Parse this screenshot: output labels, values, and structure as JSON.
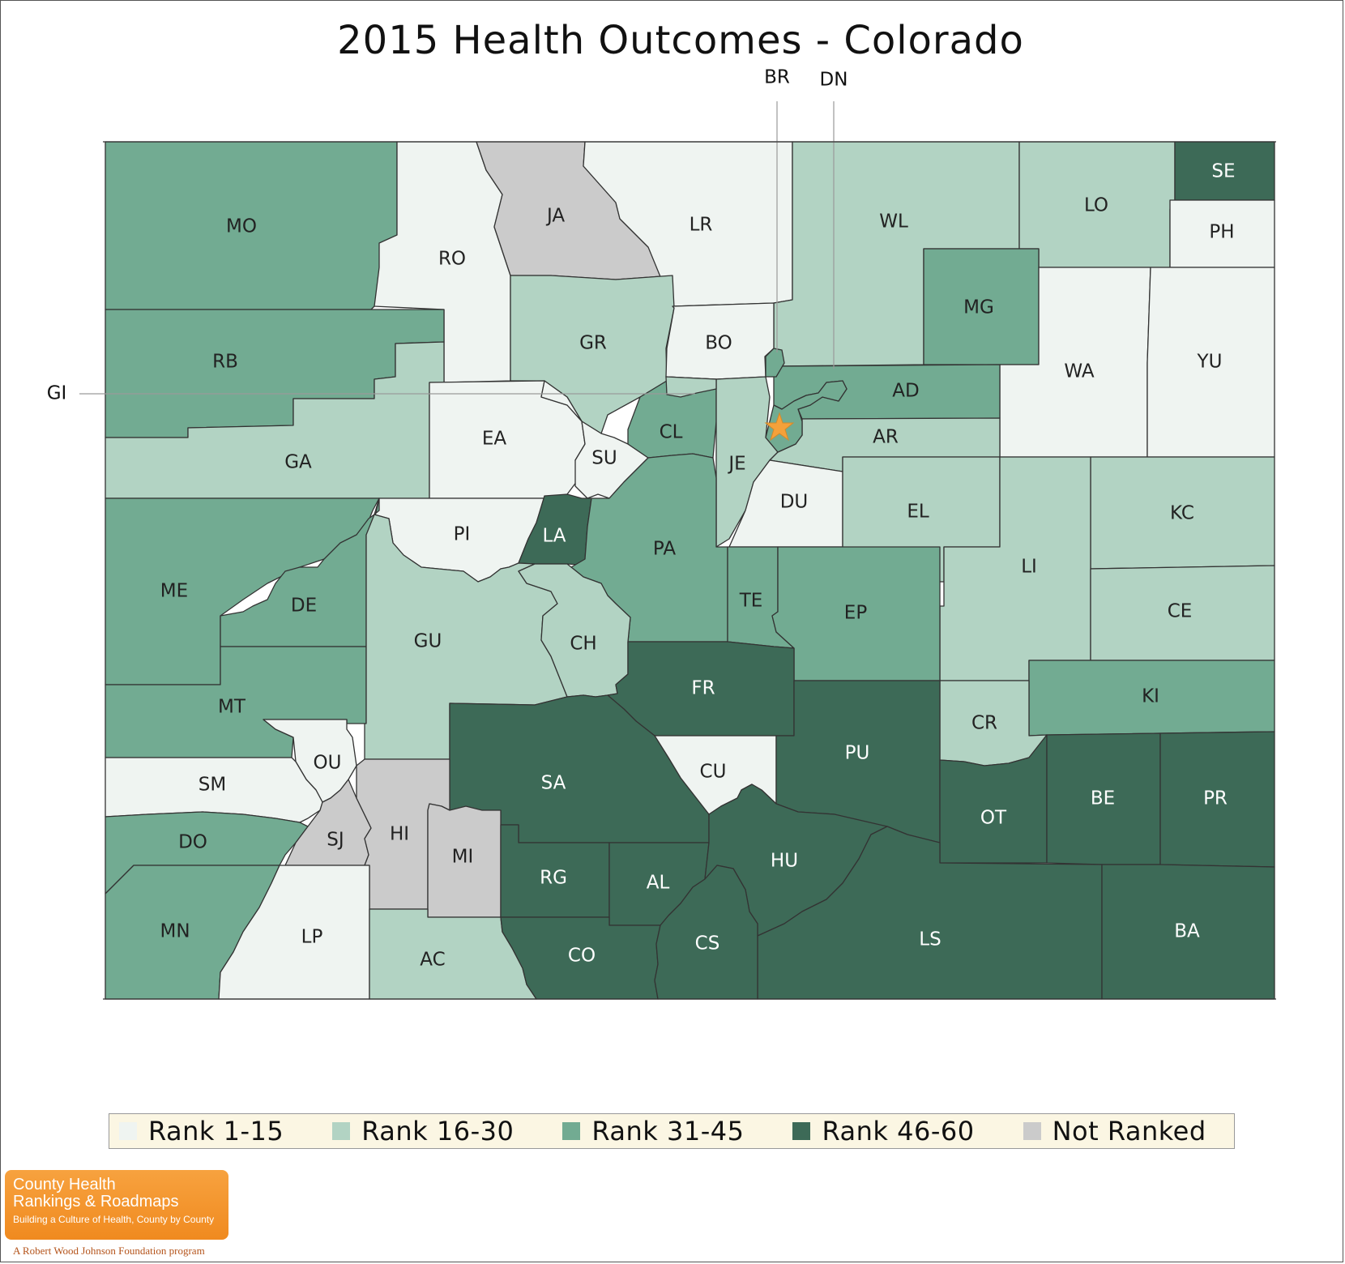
{
  "title": "2015 Health Outcomes - Colorado",
  "colors": {
    "rank_1_15": "#eff4f1",
    "rank_16_30": "#b2d3c3",
    "rank_31_45": "#72ab92",
    "rank_46_60": "#3d6a57",
    "not_ranked": "#cbcbcb",
    "label_light": "#222222",
    "label_dark": "#ffffff",
    "star": "#f5a13a"
  },
  "legend": [
    {
      "label": "Rank 1-15",
      "color": "#eff4f1"
    },
    {
      "label": "Rank 16-30",
      "color": "#b2d3c3"
    },
    {
      "label": "Rank 31-45",
      "color": "#72ab92"
    },
    {
      "label": "Rank 46-60",
      "color": "#3d6a57"
    },
    {
      "label": "Not Ranked",
      "color": "#cbcbcb"
    }
  ],
  "callouts": {
    "br": "BR",
    "dn": "DN",
    "gi": "GI"
  },
  "counties": {
    "MO": "rank_31_45",
    "RO": "rank_1_15",
    "JA": "not_ranked",
    "LR": "rank_1_15",
    "WL": "rank_16_30",
    "LO": "rank_16_30",
    "SE": "rank_46_60",
    "PH": "rank_1_15",
    "RB": "rank_31_45",
    "GR": "rank_16_30",
    "BO": "rank_1_15",
    "MG": "rank_31_45",
    "WA": "rank_1_15",
    "YU": "rank_1_15",
    "GA": "rank_16_30",
    "EA": "rank_1_15",
    "SU": "rank_1_15",
    "CL": "rank_31_45",
    "AD": "rank_31_45",
    "AR": "rank_16_30",
    "JE": "rank_16_30",
    "DU": "rank_1_15",
    "EL": "rank_16_30",
    "KC": "rank_16_30",
    "ME": "rank_31_45",
    "PI": "rank_1_15",
    "LA": "rank_46_60",
    "PA": "rank_31_45",
    "LI": "rank_16_30",
    "DE": "rank_31_45",
    "TE": "rank_31_45",
    "EP": "rank_31_45",
    "CE": "rank_16_30",
    "GU": "rank_16_30",
    "CH": "rank_16_30",
    "MT": "rank_31_45",
    "FR": "rank_46_60",
    "KI": "rank_31_45",
    "CR": "rank_16_30",
    "OU": "rank_1_15",
    "SM": "rank_1_15",
    "SA": "rank_46_60",
    "CU": "rank_1_15",
    "PU": "rank_46_60",
    "BE": "rank_46_60",
    "PR": "rank_46_60",
    "OT": "rank_46_60",
    "HI": "not_ranked",
    "SJ": "not_ranked",
    "DO": "rank_31_45",
    "MI": "not_ranked",
    "HU": "rank_46_60",
    "RG": "rank_46_60",
    "AL": "rank_46_60",
    "MN": "rank_31_45",
    "LP": "rank_1_15",
    "AC": "rank_16_30",
    "CO": "rank_46_60",
    "CS": "rank_46_60",
    "LS": "rank_46_60",
    "BA": "rank_46_60",
    "BR": "rank_31_45",
    "DN": "rank_31_45",
    "GI": "rank_16_30"
  },
  "logo": {
    "line1": "County Health",
    "line2": "Rankings & Roadmaps",
    "line3": "Building a Culture of Health, County by County",
    "foundation": "A Robert Wood Johnson Foundation program"
  }
}
